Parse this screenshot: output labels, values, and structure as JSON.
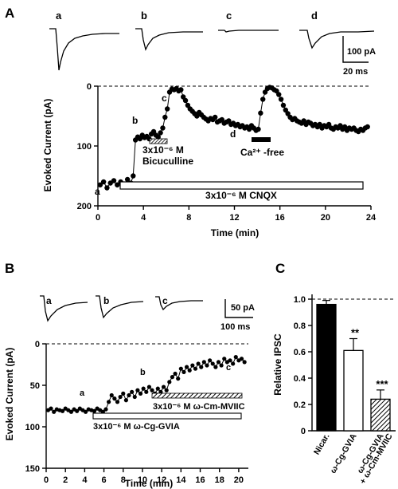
{
  "panels": {
    "A": {
      "letter": "A",
      "trace_labels": [
        "a",
        "b",
        "c",
        "d"
      ],
      "scale_bar": {
        "y_label": "100 pA",
        "x_label": "20 ms"
      },
      "chart_data": {
        "type": "scatter",
        "xlabel": "Time (min)",
        "ylabel": "Evoked Current (pA)",
        "xlim": [
          0,
          24
        ],
        "ylim": [
          200,
          0
        ],
        "x_ticks": [
          "0",
          "4",
          "8",
          "12",
          "16",
          "20",
          "24"
        ],
        "y_ticks": [
          "0",
          "100",
          "200"
        ],
        "x": [
          0.2,
          0.5,
          0.8,
          1.1,
          1.4,
          1.7,
          2,
          2.3,
          2.6,
          2.9,
          3.1,
          3.3,
          3.5,
          3.7,
          3.9,
          4.1,
          4.3,
          4.5,
          4.7,
          4.9,
          5.1,
          5.3,
          5.5,
          5.7,
          5.9,
          6.1,
          6.3,
          6.5,
          6.7,
          6.9,
          7.1,
          7.3,
          7.5,
          7.7,
          7.9,
          8.1,
          8.3,
          8.5,
          8.7,
          8.9,
          9.1,
          9.3,
          9.5,
          9.7,
          9.9,
          10.1,
          10.3,
          10.5,
          10.7,
          10.9,
          11.1,
          11.3,
          11.5,
          11.7,
          11.9,
          12.1,
          12.3,
          12.5,
          12.7,
          12.9,
          13.1,
          13.3,
          13.5,
          13.7,
          13.9,
          14.1,
          14.3,
          14.5,
          14.7,
          14.9,
          15.1,
          15.3,
          15.5,
          15.7,
          15.9,
          16.1,
          16.3,
          16.5,
          16.7,
          16.9,
          17.1,
          17.3,
          17.5,
          17.7,
          17.9,
          18.1,
          18.3,
          18.5,
          18.7,
          18.9,
          19.1,
          19.3,
          19.5,
          19.7,
          19.9,
          20.1,
          20.3,
          20.5,
          20.7,
          20.9,
          21.1,
          21.3,
          21.5,
          21.7,
          21.9,
          22.1,
          22.3,
          22.5,
          22.7,
          22.9,
          23.1,
          23.3,
          23.5,
          23.7
        ],
        "values": [
          165,
          160,
          170,
          162,
          158,
          165,
          160,
          168,
          156,
          162,
          150,
          90,
          85,
          88,
          82,
          86,
          84,
          88,
          80,
          76,
          82,
          85,
          78,
          70,
          52,
          38,
          10,
          5,
          6,
          4,
          8,
          6,
          18,
          24,
          32,
          38,
          42,
          46,
          50,
          44,
          48,
          52,
          55,
          58,
          54,
          56,
          52,
          60,
          58,
          56,
          62,
          60,
          58,
          64,
          62,
          66,
          64,
          68,
          66,
          70,
          68,
          72,
          66,
          70,
          74,
          72,
          45,
          22,
          10,
          4,
          2,
          3,
          6,
          8,
          14,
          22,
          32,
          40,
          46,
          52,
          56,
          54,
          58,
          60,
          62,
          58,
          64,
          60,
          62,
          66,
          64,
          68,
          64,
          70,
          66,
          68,
          64,
          70,
          72,
          68,
          70,
          66,
          72,
          68,
          74,
          70,
          72,
          70,
          74,
          76,
          72,
          74,
          70,
          68
        ],
        "annotations": {
          "point_labels": [
            "a",
            "b",
            "c",
            "d"
          ],
          "bicuculline": "3x10⁻⁶ M\nBicuculline",
          "bicuculline_line1": "3x10⁻⁶ M",
          "bicuculline_line2": "Bicuculline",
          "ca_free": "Ca²⁺ -free",
          "cnqx": "3x10⁻⁶ M CNQX"
        }
      }
    },
    "B": {
      "letter": "B",
      "trace_labels": [
        "a",
        "b",
        "c"
      ],
      "scale_bar": {
        "y_label": "50 pA",
        "x_label": "100 ms"
      },
      "chart_data": {
        "type": "scatter",
        "xlabel": "Time (min)",
        "ylabel": "Evoked Current (pA)",
        "xlim": [
          0,
          21
        ],
        "ylim": [
          150,
          0
        ],
        "x_ticks": [
          "0",
          "2",
          "4",
          "6",
          "8",
          "10",
          "12",
          "14",
          "16",
          "18",
          "20"
        ],
        "y_ticks": [
          "0",
          "50",
          "100",
          "150"
        ],
        "x": [
          0.2,
          0.5,
          0.8,
          1.1,
          1.4,
          1.7,
          2,
          2.3,
          2.6,
          2.9,
          3.2,
          3.5,
          3.8,
          4.1,
          4.4,
          4.7,
          5,
          5.3,
          5.6,
          5.9,
          6.2,
          6.5,
          6.8,
          7.1,
          7.4,
          7.7,
          8,
          8.3,
          8.6,
          8.9,
          9.2,
          9.5,
          9.8,
          10.1,
          10.4,
          10.7,
          11,
          11.3,
          11.6,
          11.9,
          12.2,
          12.5,
          12.8,
          13.1,
          13.4,
          13.7,
          14,
          14.3,
          14.6,
          14.9,
          15.2,
          15.5,
          15.8,
          16.1,
          16.4,
          16.7,
          17,
          17.3,
          17.6,
          17.9,
          18.2,
          18.5,
          18.8,
          19.1,
          19.4,
          19.7,
          20,
          20.3,
          20.6
        ],
        "values": [
          80,
          78,
          82,
          79,
          80,
          81,
          78,
          80,
          82,
          79,
          81,
          78,
          80,
          82,
          79,
          80,
          81,
          78,
          80,
          82,
          79,
          70,
          62,
          66,
          70,
          64,
          60,
          68,
          62,
          58,
          64,
          56,
          60,
          54,
          58,
          52,
          56,
          60,
          54,
          58,
          52,
          56,
          46,
          40,
          36,
          42,
          30,
          34,
          28,
          32,
          26,
          30,
          24,
          28,
          22,
          26,
          20,
          24,
          28,
          22,
          26,
          18,
          22,
          20,
          24,
          16,
          20,
          18,
          22
        ],
        "annotations": {
          "point_labels": [
            "a",
            "b",
            "c"
          ],
          "mviic": "3x10⁻⁶ M ω-Cm-MVIIC",
          "gvia": "3x10⁻⁶ M ω-Cg-GVIA"
        }
      }
    },
    "C": {
      "letter": "C",
      "chart_data": {
        "type": "bar",
        "ylabel": "Relative IPSC",
        "ylim": [
          0,
          1.05
        ],
        "y_ticks": [
          "0",
          "0.2",
          "0.4",
          "0.6",
          "0.8",
          "1.0"
        ],
        "categories": [
          "Nicar.",
          "ω-Cg-GVIA",
          "ω-Cg-GVIA\n+ ω-Cm-MVIIC"
        ],
        "category_lines": [
          [
            "Nicar."
          ],
          [
            "ω-Cg-GVIA"
          ],
          [
            "ω-Cg-GVIA",
            "+ ω-Cm-MVIIC"
          ]
        ],
        "values": [
          0.96,
          0.61,
          0.24
        ],
        "errors": [
          0.03,
          0.09,
          0.07
        ],
        "significance": [
          "",
          "**",
          "***"
        ],
        "fills": [
          "solid",
          "open",
          "hatched"
        ],
        "reference_line": 1.0
      }
    }
  }
}
